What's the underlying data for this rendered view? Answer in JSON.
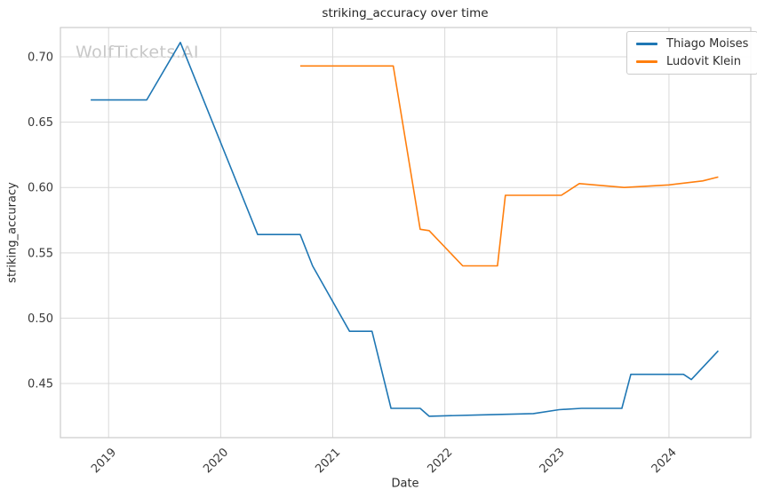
{
  "watermark": "WolfTickets.AI",
  "chart_data": {
    "type": "line",
    "title": "striking_accuracy over time",
    "xlabel": "Date",
    "ylabel": "striking_accuracy",
    "x_unit": "decimal_year",
    "xlim": [
      2018.57,
      2024.73
    ],
    "ylim": [
      0.4086,
      0.7224
    ],
    "x_ticks": [
      2019,
      2020,
      2021,
      2022,
      2023,
      2024
    ],
    "y_ticks": [
      0.45,
      0.5,
      0.55,
      0.6,
      0.65,
      0.7
    ],
    "grid": true,
    "legend_position": "upper right",
    "series": [
      {
        "name": "Thiago Moises",
        "color": "#1f77b4",
        "points": [
          [
            2018.84,
            0.667
          ],
          [
            2019.34,
            0.667
          ],
          [
            2019.64,
            0.711
          ],
          [
            2020.33,
            0.564
          ],
          [
            2020.71,
            0.564
          ],
          [
            2020.82,
            0.54
          ],
          [
            2021.15,
            0.49
          ],
          [
            2021.35,
            0.49
          ],
          [
            2021.52,
            0.431
          ],
          [
            2021.78,
            0.431
          ],
          [
            2021.86,
            0.425
          ],
          [
            2022.31,
            0.426
          ],
          [
            2022.79,
            0.427
          ],
          [
            2023.02,
            0.43
          ],
          [
            2023.22,
            0.431
          ],
          [
            2023.58,
            0.431
          ],
          [
            2023.66,
            0.457
          ],
          [
            2024.13,
            0.457
          ],
          [
            2024.2,
            0.453
          ],
          [
            2024.44,
            0.475
          ]
        ]
      },
      {
        "name": "Ludovit Klein",
        "color": "#ff7f0e",
        "points": [
          [
            2020.71,
            0.693
          ],
          [
            2021.54,
            0.693
          ],
          [
            2021.78,
            0.568
          ],
          [
            2021.86,
            0.567
          ],
          [
            2022.16,
            0.54
          ],
          [
            2022.47,
            0.54
          ],
          [
            2022.54,
            0.594
          ],
          [
            2023.04,
            0.594
          ],
          [
            2023.2,
            0.603
          ],
          [
            2023.6,
            0.6
          ],
          [
            2024.0,
            0.602
          ],
          [
            2024.3,
            0.605
          ],
          [
            2024.44,
            0.608
          ]
        ]
      }
    ]
  }
}
